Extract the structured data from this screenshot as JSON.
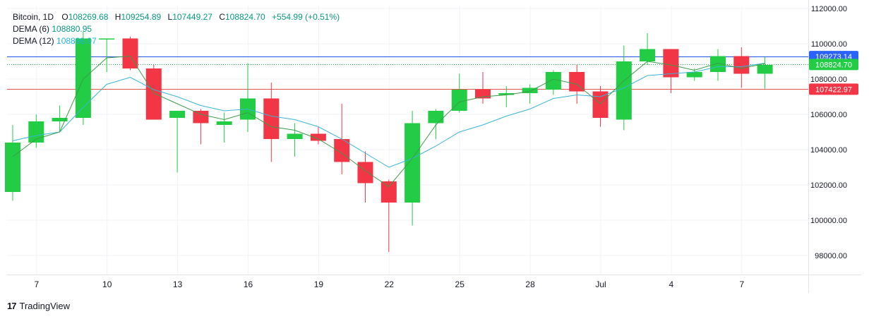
{
  "legend": {
    "symbol": "Bitcoin, 1D",
    "o_label": "O",
    "o_value": "108269.68",
    "h_label": "H",
    "h_value": "109254.89",
    "l_label": "L",
    "l_value": "107449.27",
    "c_label": "C",
    "c_value": "108824.70",
    "change": "+554.99 (+0.51%)",
    "dema6_label": "DEMA (6)",
    "dema6_value": "108880.95",
    "dema12_label": "DEMA (12)",
    "dema12_value": "108898.97"
  },
  "footer": {
    "brand": "TradingView",
    "logo": "17"
  },
  "colors": {
    "up": "#22cc44",
    "down": "#f23645",
    "dema6": "#3f9b4a",
    "dema12": "#39b5d9",
    "blue_line": "#1e53e5",
    "red_line": "#e8554e",
    "dotted": "#22a046"
  },
  "chart_data": {
    "type": "candlestick",
    "y_axis": {
      "min": 97000,
      "max": 112600,
      "ticks": [
        "112000.00",
        "110000.00",
        "108000.00",
        "106000.00",
        "104000.00",
        "102000.00",
        "100000.00",
        "98000.00"
      ]
    },
    "x_ticks": [
      {
        "i": 1,
        "label": "7"
      },
      {
        "i": 4,
        "label": "10"
      },
      {
        "i": 7,
        "label": "13"
      },
      {
        "i": 10,
        "label": "16"
      },
      {
        "i": 13,
        "label": "19"
      },
      {
        "i": 16,
        "label": "22"
      },
      {
        "i": 19,
        "label": "25"
      },
      {
        "i": 22,
        "label": "28"
      },
      {
        "i": 25,
        "label": "Jul"
      },
      {
        "i": 28,
        "label": "4"
      },
      {
        "i": 31,
        "label": "7"
      }
    ],
    "candles": [
      {
        "o": 101600,
        "h": 105400,
        "l": 101100,
        "c": 104400
      },
      {
        "o": 104400,
        "h": 106000,
        "l": 104100,
        "c": 105600
      },
      {
        "o": 105600,
        "h": 106500,
        "l": 105000,
        "c": 105800
      },
      {
        "o": 105800,
        "h": 110700,
        "l": 105400,
        "c": 110300
      },
      {
        "o": 110300,
        "h": 110300,
        "l": 108400,
        "c": 110300
      },
      {
        "o": 110300,
        "h": 110400,
        "l": 108500,
        "c": 108600
      },
      {
        "o": 108600,
        "h": 108800,
        "l": 105700,
        "c": 105700
      },
      {
        "o": 105800,
        "h": 106200,
        "l": 102700,
        "c": 106200
      },
      {
        "o": 106200,
        "h": 106300,
        "l": 104300,
        "c": 105500
      },
      {
        "o": 105400,
        "h": 106100,
        "l": 104400,
        "c": 105600
      },
      {
        "o": 105700,
        "h": 108900,
        "l": 105000,
        "c": 106900
      },
      {
        "o": 106900,
        "h": 107800,
        "l": 103300,
        "c": 104600
      },
      {
        "o": 104600,
        "h": 105500,
        "l": 103600,
        "c": 104900
      },
      {
        "o": 104900,
        "h": 105300,
        "l": 104300,
        "c": 104500
      },
      {
        "o": 104600,
        "h": 106600,
        "l": 102600,
        "c": 103300
      },
      {
        "o": 103300,
        "h": 103900,
        "l": 101000,
        "c": 102100
      },
      {
        "o": 102200,
        "h": 102300,
        "l": 98200,
        "c": 101000
      },
      {
        "o": 101000,
        "h": 106200,
        "l": 99700,
        "c": 105500
      },
      {
        "o": 105500,
        "h": 106300,
        "l": 104600,
        "c": 106200
      },
      {
        "o": 106200,
        "h": 108300,
        "l": 106100,
        "c": 107400
      },
      {
        "o": 107400,
        "h": 108400,
        "l": 106600,
        "c": 106900
      },
      {
        "o": 107100,
        "h": 107600,
        "l": 106400,
        "c": 107200
      },
      {
        "o": 107200,
        "h": 107700,
        "l": 106600,
        "c": 107500
      },
      {
        "o": 107400,
        "h": 108500,
        "l": 107100,
        "c": 108400
      },
      {
        "o": 108400,
        "h": 108800,
        "l": 106600,
        "c": 107300
      },
      {
        "o": 107300,
        "h": 107600,
        "l": 105300,
        "c": 105800
      },
      {
        "o": 105700,
        "h": 109900,
        "l": 105100,
        "c": 109000
      },
      {
        "o": 109000,
        "h": 110600,
        "l": 108800,
        "c": 109700
      },
      {
        "o": 109700,
        "h": 109700,
        "l": 107200,
        "c": 108100
      },
      {
        "o": 108100,
        "h": 108600,
        "l": 107900,
        "c": 108400
      },
      {
        "o": 108400,
        "h": 109700,
        "l": 107900,
        "c": 109300
      },
      {
        "o": 109300,
        "h": 109800,
        "l": 107500,
        "c": 108300
      },
      {
        "o": 108300,
        "h": 109250,
        "l": 107450,
        "c": 108800
      }
    ],
    "dema6": [
      103600,
      104600,
      105000,
      108000,
      109200,
      109300,
      107200,
      106600,
      106000,
      105700,
      106100,
      105300,
      105100,
      104600,
      103800,
      102800,
      101900,
      103500,
      105400,
      106700,
      107000,
      107100,
      107300,
      108000,
      107700,
      106600,
      107900,
      109000,
      108800,
      108500,
      108900,
      108600,
      108880
    ],
    "dema12": [
      104500,
      104800,
      105000,
      106400,
      107700,
      108100,
      107400,
      107000,
      106500,
      106200,
      106300,
      105900,
      105700,
      105300,
      104600,
      103800,
      103000,
      103500,
      104200,
      105000,
      105400,
      105900,
      106300,
      106900,
      107100,
      107000,
      107500,
      108200,
      108300,
      108400,
      108700,
      108700,
      108900
    ],
    "price_lines": [
      {
        "name": "blue",
        "value": 109273.14,
        "label": "109273.14",
        "bg": "#2962ff"
      },
      {
        "name": "close",
        "value": 108824.7,
        "label": "108824.70",
        "bg": "#22cc44"
      },
      {
        "name": "red",
        "value": 107422.97,
        "label": "107422.97",
        "bg": "#f23645"
      }
    ]
  }
}
